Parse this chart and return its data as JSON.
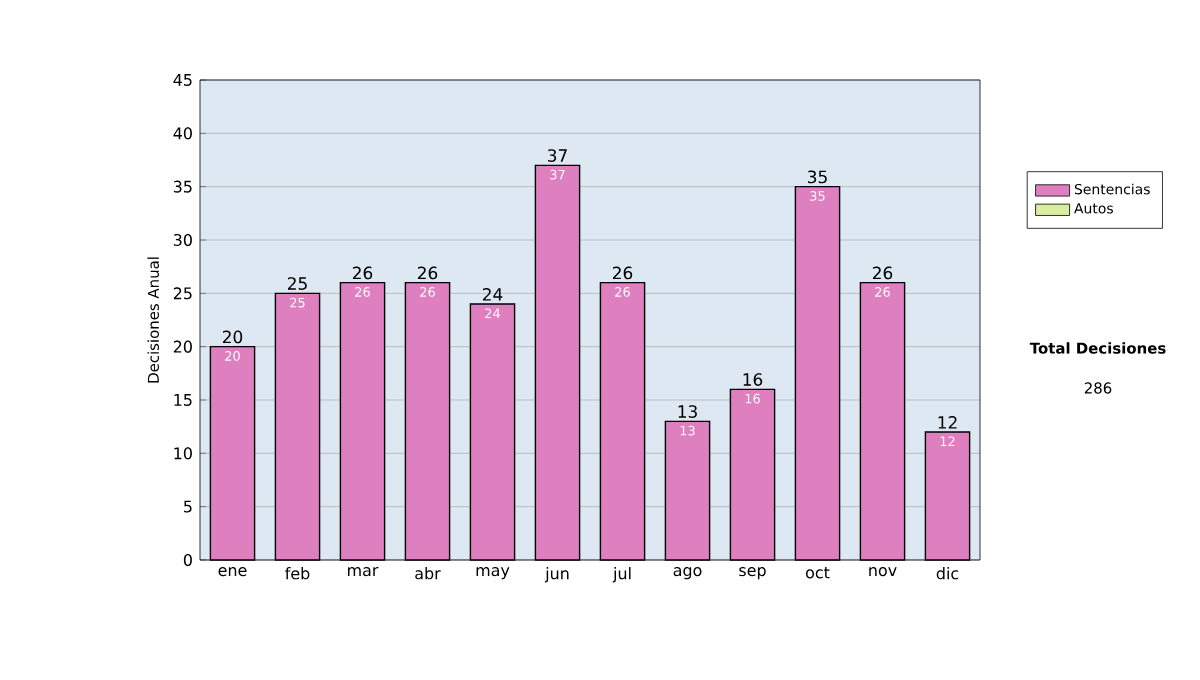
{
  "chart_data": {
    "type": "bar",
    "ylabel": "Decisiones Anual",
    "categories": [
      "ene",
      "feb",
      "mar",
      "abr",
      "may",
      "jun",
      "jul",
      "ago",
      "sep",
      "oct",
      "nov",
      "dic"
    ],
    "series": [
      {
        "name": "Sentencias",
        "color": "#de7fc0",
        "values": [
          20,
          25,
          26,
          26,
          24,
          37,
          26,
          13,
          16,
          35,
          26,
          12
        ]
      },
      {
        "name": "Autos",
        "color": "#d9eca0",
        "values": [
          null,
          null,
          null,
          null,
          null,
          null,
          null,
          null,
          null,
          null,
          null,
          null
        ]
      }
    ],
    "stacked": true,
    "totals": [
      "20",
      "25",
      "26",
      "26",
      "24",
      "37",
      "26",
      "13",
      "16",
      "35",
      "26",
      "12"
    ],
    "data_labels": true,
    "ylim": [
      0,
      45
    ],
    "yticks": [
      0,
      5,
      10,
      15,
      20,
      25,
      30,
      35,
      40,
      45
    ],
    "grid": "y",
    "legend": "right",
    "annotations": [
      "**Total Decisiones**",
      "286"
    ]
  }
}
